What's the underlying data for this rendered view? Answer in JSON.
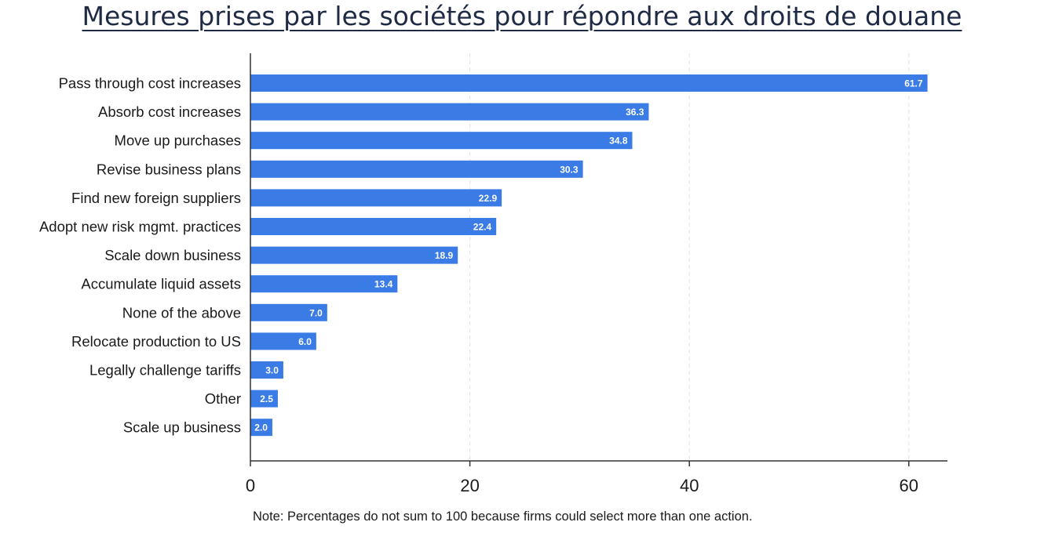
{
  "title": "Mesures prises par les sociétés pour répondre aux droits de douane",
  "note": "Note: Percentages do not sum to 100 because firms could select more than one action.",
  "colors": {
    "bar": "#3a7be6",
    "axis": "#333333",
    "grid": "#e2e2e2",
    "title": "#1f2a44"
  },
  "chart_data": {
    "type": "bar",
    "orientation": "horizontal",
    "categories": [
      "Pass through cost increases",
      "Absorb cost increases",
      "Move up purchases",
      "Revise business plans",
      "Find new foreign suppliers",
      "Adopt new risk mgmt. practices",
      "Scale down business",
      "Accumulate liquid assets",
      "None of the above",
      "Relocate production to US",
      "Legally challenge tariffs",
      "Other",
      "Scale up business"
    ],
    "values": [
      61.7,
      36.3,
      34.8,
      30.3,
      22.9,
      22.4,
      18.9,
      13.4,
      7.0,
      6.0,
      3.0,
      2.5,
      2.0
    ],
    "data_labels": [
      "61.7",
      "36.3",
      "34.8",
      "30.3",
      "22.9",
      "22.4",
      "18.9",
      "13.4",
      "7.0",
      "6.0",
      "3.0",
      "2.5",
      "2.0"
    ],
    "xticks": [
      0,
      20,
      40,
      60
    ],
    "xlim": [
      0,
      63.5
    ],
    "grid": "vertical dashed",
    "title": "Mesures prises par les sociétés pour répondre aux droits de douane",
    "xlabel": "",
    "ylabel": ""
  }
}
